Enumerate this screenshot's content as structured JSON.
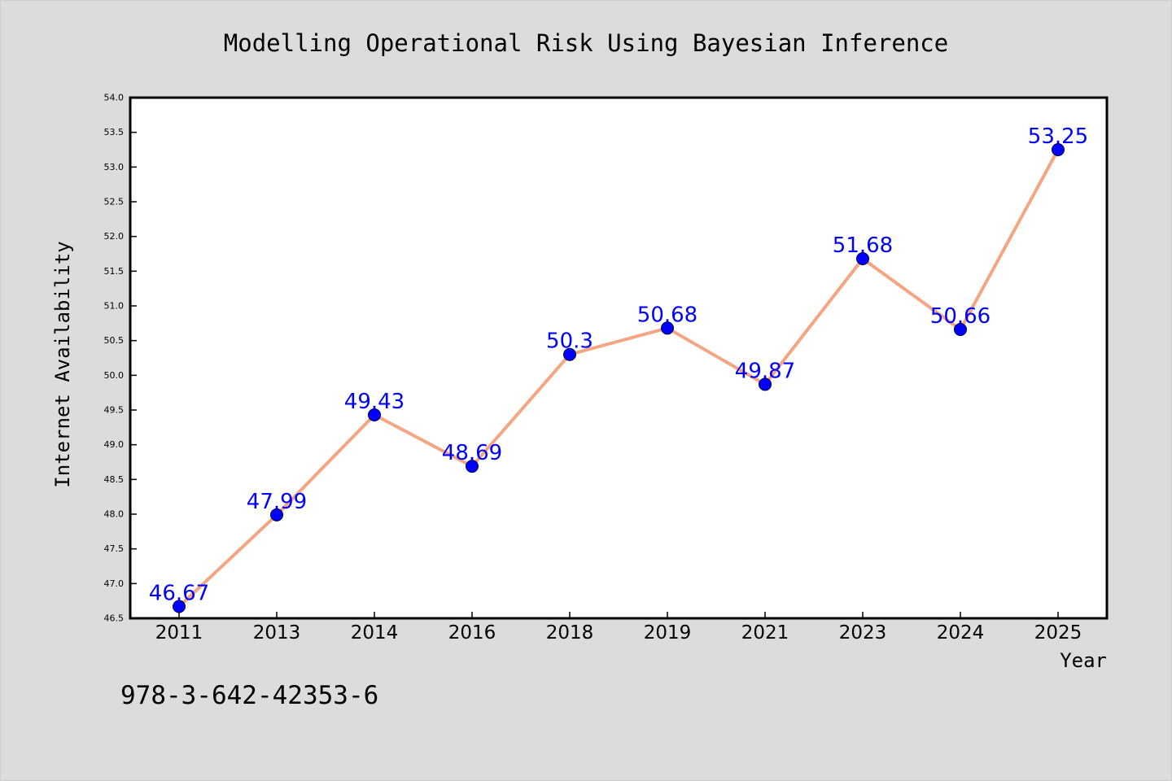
{
  "chart_data": {
    "type": "line",
    "title": "Modelling Operational Risk Using Bayesian Inference",
    "xlabel": "Year",
    "ylabel": "Internet Availability",
    "categories": [
      "2011",
      "2013",
      "2014",
      "2016",
      "2018",
      "2019",
      "2021",
      "2023",
      "2024",
      "2025"
    ],
    "series": [
      {
        "values": [
          46.67,
          47.99,
          49.43,
          48.69,
          50.3,
          50.68,
          49.87,
          51.68,
          50.66,
          53.25
        ],
        "data_labels": [
          "46.67",
          "47.99",
          "49.43",
          "48.69",
          "50.3",
          "50.68",
          "49.87",
          "51.68",
          "50.66",
          "53.25"
        ]
      }
    ],
    "ylim": [
      46.5,
      54.0
    ],
    "yticks": [
      "46.5",
      "47.0",
      "47.5",
      "48.0",
      "48.5",
      "49.0",
      "49.5",
      "50.0",
      "50.5",
      "51.0",
      "51.5",
      "52.0",
      "52.5",
      "53.0",
      "53.5",
      "54.0"
    ],
    "grid": false,
    "legend": "none",
    "colors": {
      "line": "#f4a582",
      "marker": "#0000ff",
      "label": "#0000ff",
      "background": "#dcdcdc",
      "plot_background": "#ffffff"
    }
  },
  "footer_text": "978-3-642-42353-6"
}
